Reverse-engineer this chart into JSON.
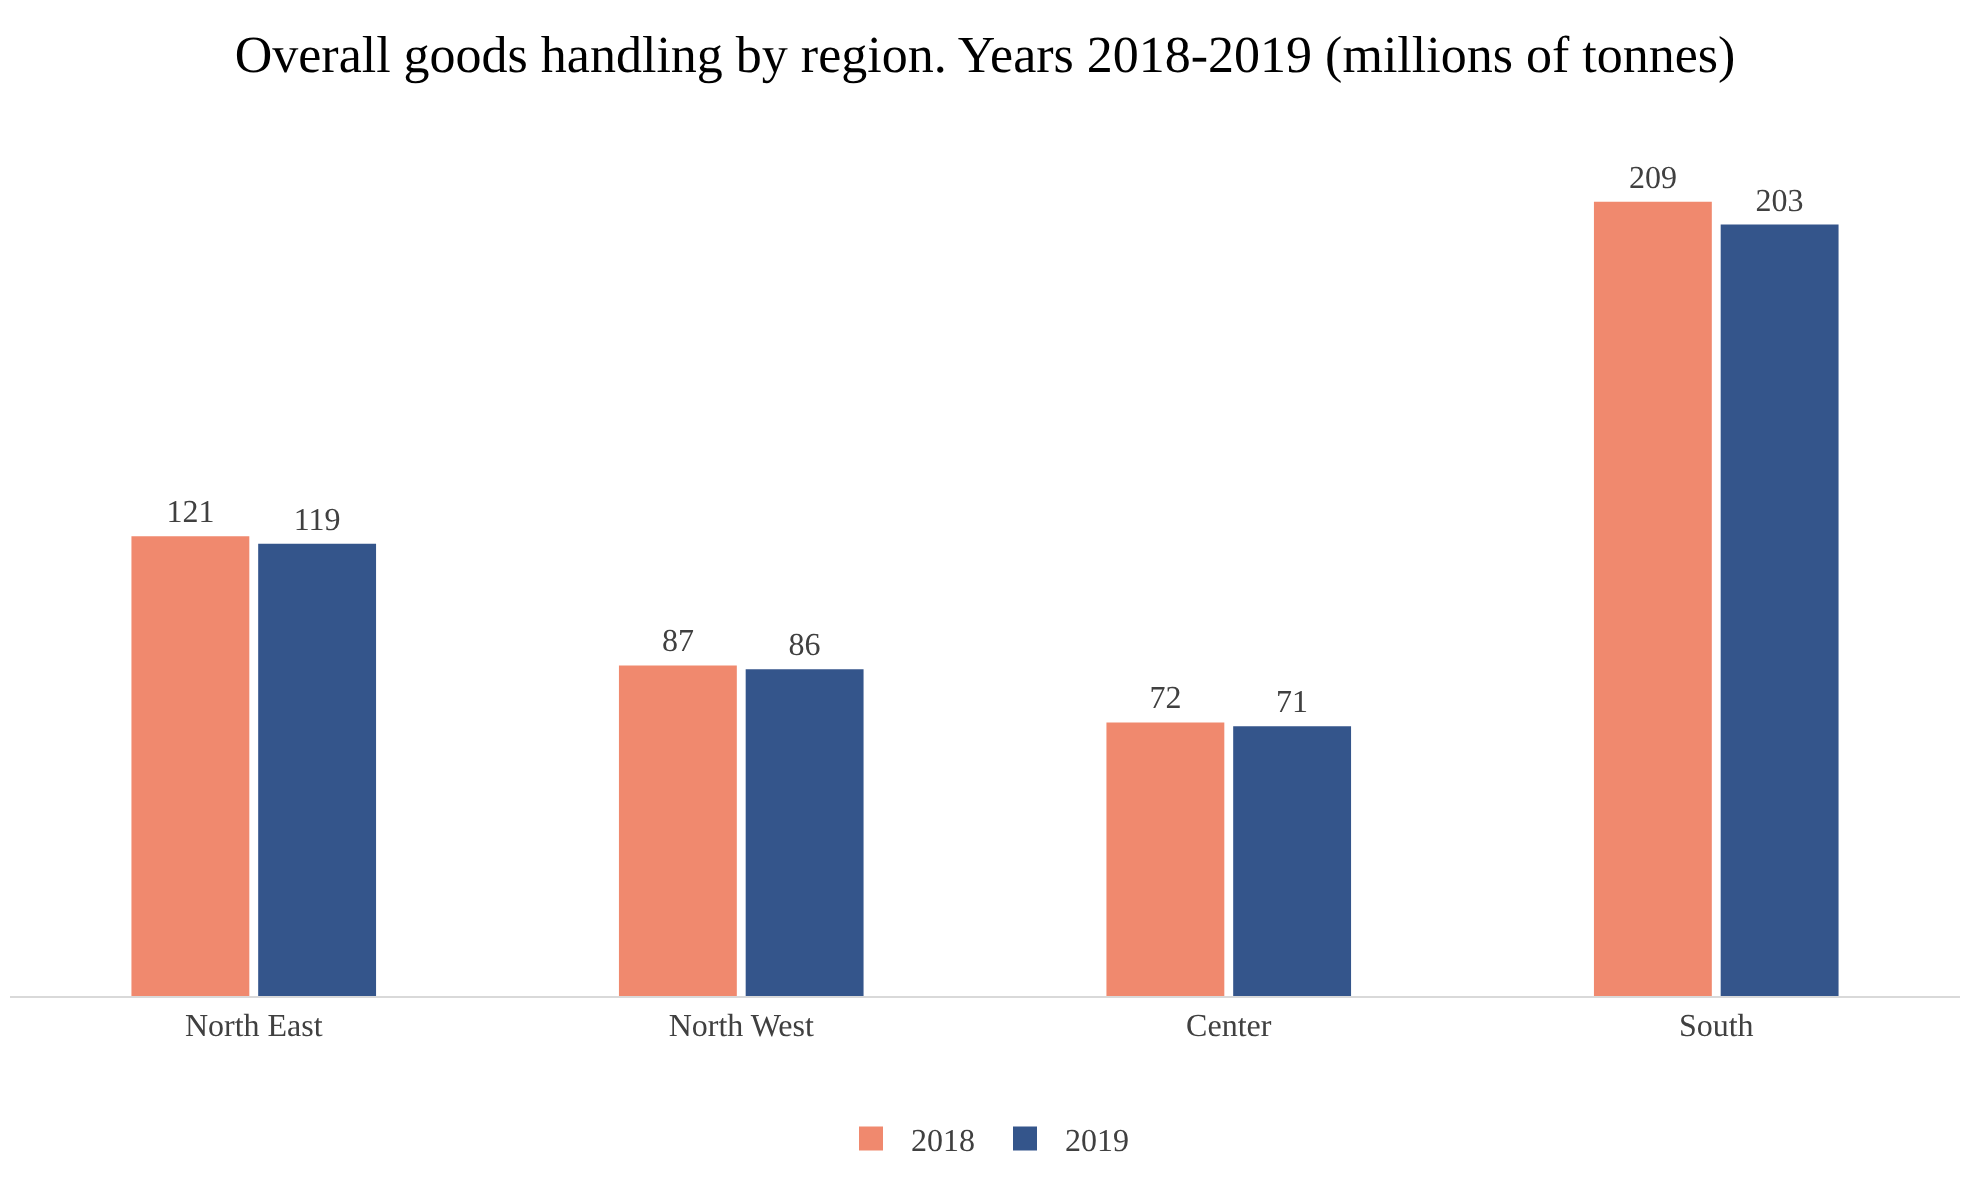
{
  "chart_data": {
    "type": "bar",
    "title": "Overall goods handling by region. Years 2018-2019 (millions of tonnes)",
    "categories": [
      "North East",
      "North West",
      "Center",
      "South"
    ],
    "series": [
      {
        "name": "2018",
        "color": "#f0896e",
        "values": [
          121,
          87,
          72,
          209
        ]
      },
      {
        "name": "2019",
        "color": "#34558b",
        "values": [
          119,
          86,
          71,
          203
        ]
      }
    ],
    "data_labels": true,
    "legend": "bottom"
  }
}
